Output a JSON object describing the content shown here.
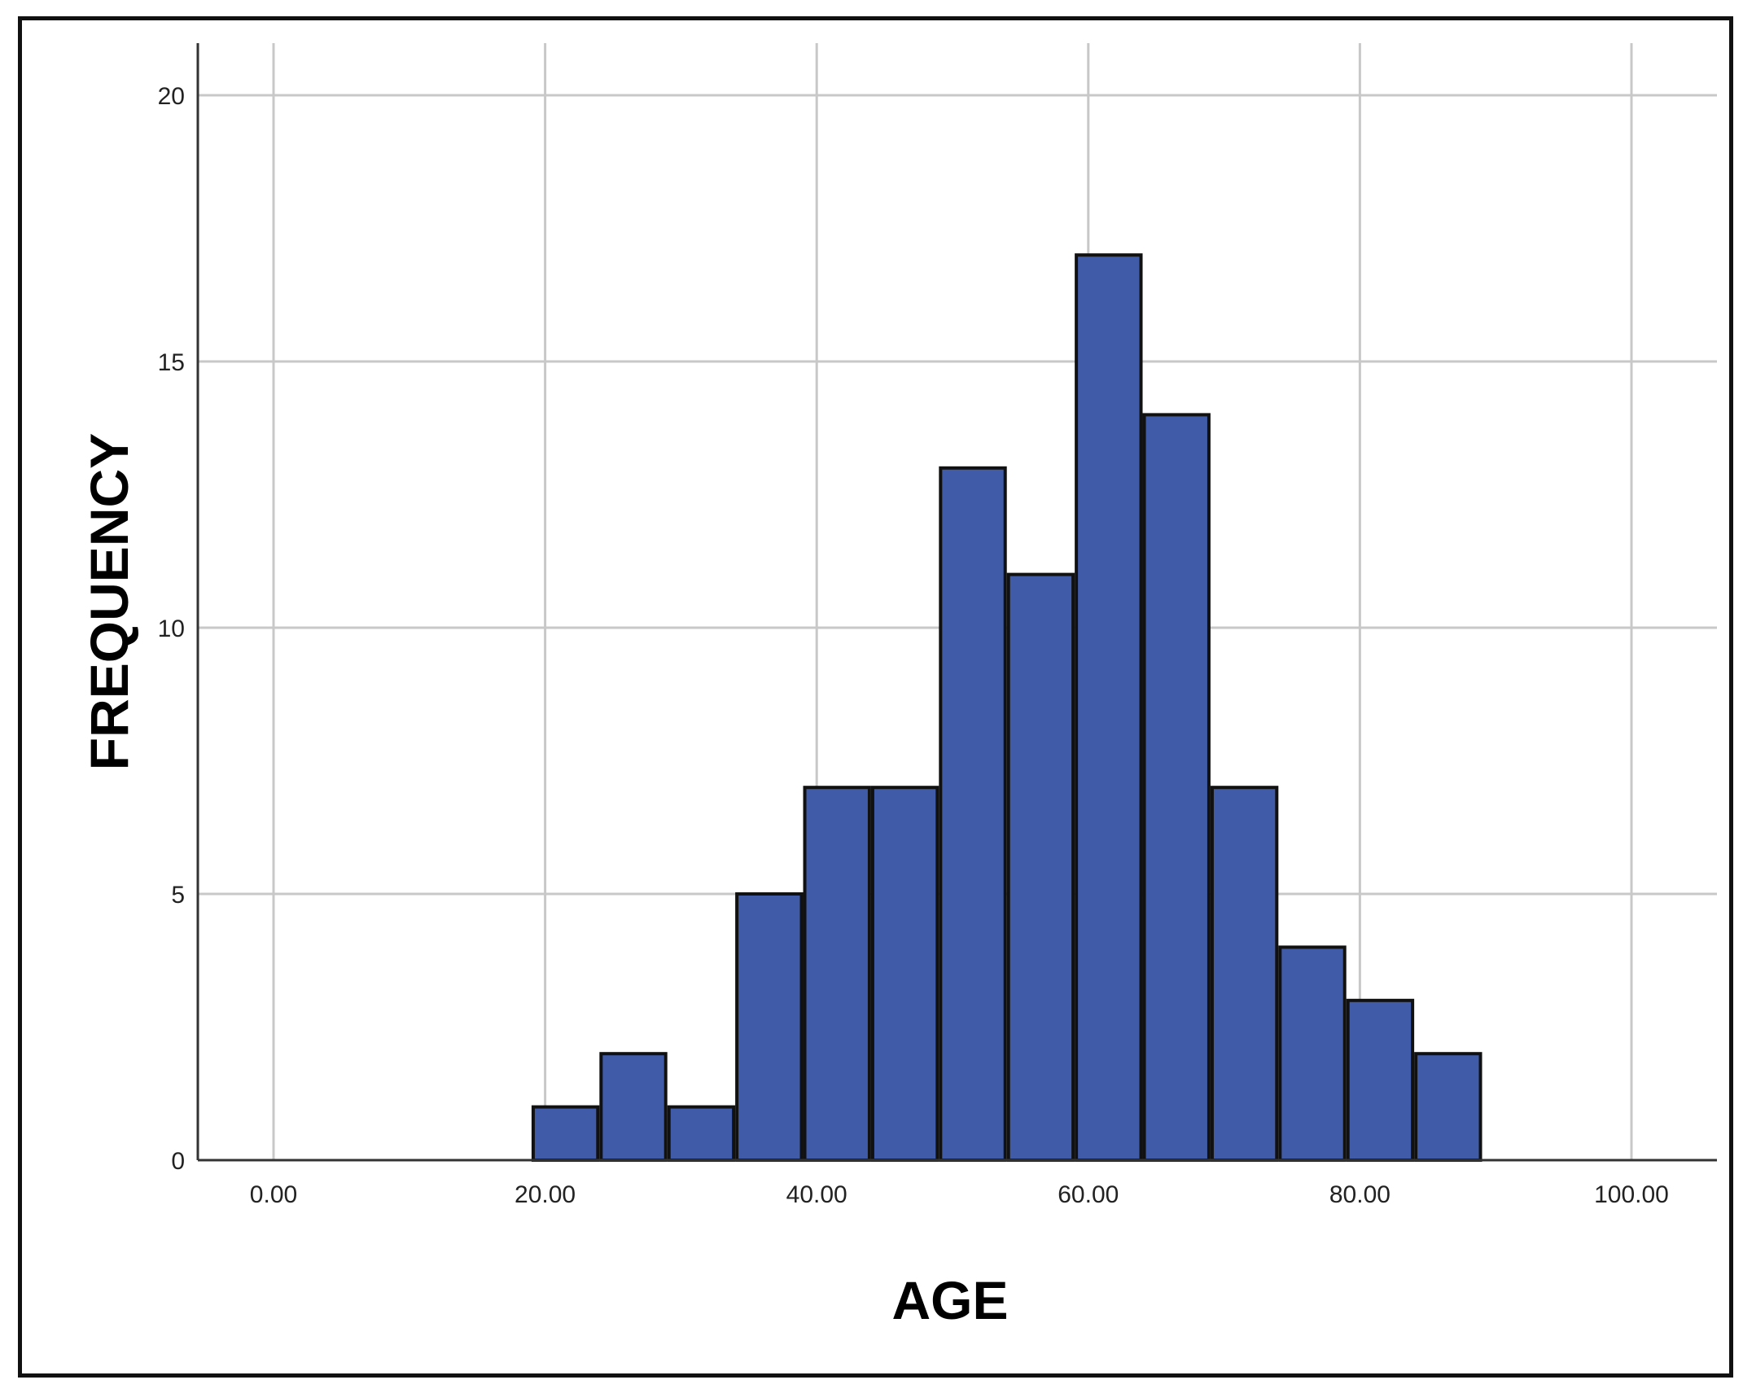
{
  "chart_data": {
    "type": "bar",
    "subtype": "histogram",
    "xlabel": "AGE",
    "ylabel": "FREQUENCY",
    "title": "",
    "xlim": [
      -5,
      105
    ],
    "ylim": [
      0,
      21
    ],
    "x_ticks": [
      0,
      20,
      40,
      60,
      80,
      100
    ],
    "x_tick_labels": [
      "0.00",
      "20.00",
      "40.00",
      "60.00",
      "80.00",
      "100.00"
    ],
    "y_ticks": [
      0,
      5,
      10,
      15,
      20
    ],
    "y_tick_labels": [
      "0",
      "5",
      "10",
      "15",
      "20"
    ],
    "bin_width": 5,
    "bins": [
      {
        "start": 19,
        "end": 24,
        "count": 1
      },
      {
        "start": 24,
        "end": 29,
        "count": 2
      },
      {
        "start": 29,
        "end": 34,
        "count": 1
      },
      {
        "start": 34,
        "end": 39,
        "count": 5
      },
      {
        "start": 39,
        "end": 44,
        "count": 7
      },
      {
        "start": 44,
        "end": 49,
        "count": 7
      },
      {
        "start": 49,
        "end": 54,
        "count": 13
      },
      {
        "start": 54,
        "end": 59,
        "count": 11
      },
      {
        "start": 59,
        "end": 64,
        "count": 17
      },
      {
        "start": 64,
        "end": 69,
        "count": 14
      },
      {
        "start": 69,
        "end": 74,
        "count": 7
      },
      {
        "start": 74,
        "end": 79,
        "count": 4
      },
      {
        "start": 79,
        "end": 84,
        "count": 3
      },
      {
        "start": 84,
        "end": 89,
        "count": 2
      }
    ],
    "grid": true,
    "legend": "none",
    "colors": {
      "bar_fill": "#405ca8",
      "bar_stroke": "#111111",
      "grid": "#c8c8c8",
      "axis": "#333333"
    }
  }
}
